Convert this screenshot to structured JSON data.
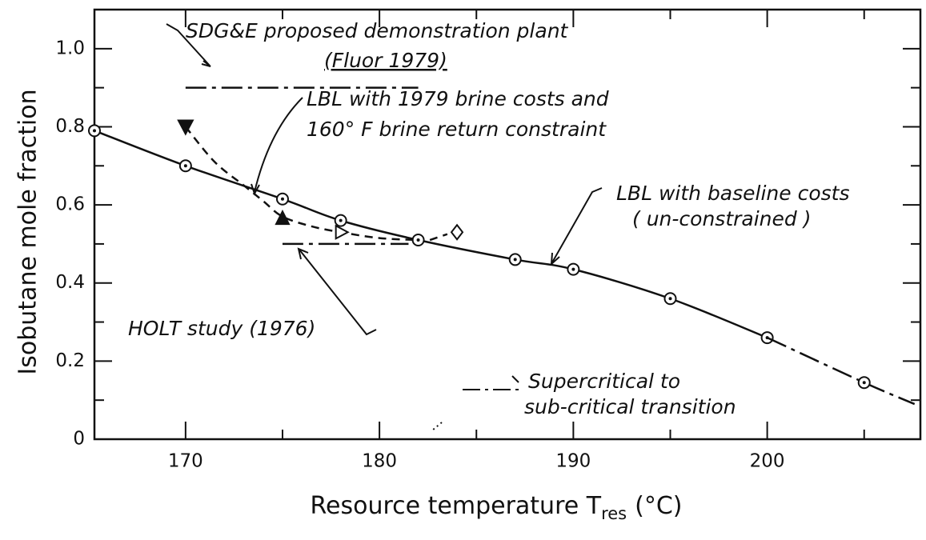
{
  "chart_data": {
    "type": "line",
    "x_label": "Resource temperature T",
    "x_label_subscript": "res",
    "x_label_unit": "(°C)",
    "y_label": "Isobutane mole fraction",
    "xlim": [
      165.3,
      207.9
    ],
    "ylim": [
      0,
      1.1
    ],
    "xticks": [
      170,
      180,
      190,
      200
    ],
    "xticks_minor": [
      175,
      185,
      195,
      205
    ],
    "yticks": [
      0,
      0.2,
      0.4,
      0.6,
      0.8,
      {
        "value": 1,
        "label": "1.0"
      }
    ],
    "yticks_minor": [
      0.1,
      0.3,
      0.5,
      0.7,
      0.9
    ],
    "color": "#111111",
    "series": [
      {
        "line": "solid",
        "marker": "circle-dot",
        "x": [
          165.3,
          170,
          175,
          178,
          182,
          187,
          190,
          195,
          200
        ],
        "values": [
          0.79,
          0.7,
          0.615,
          0.56,
          0.51,
          0.46,
          0.435,
          0.36,
          0.26
        ]
      },
      {
        "line": "dashdot",
        "marker": "none",
        "x": [
          200,
          205,
          207.6
        ],
        "values": [
          0.26,
          0.145,
          0.09
        ]
      },
      {
        "line": "none",
        "marker": "circle-dot",
        "x": [
          205
        ],
        "values": [
          0.145
        ]
      },
      {
        "line": "dashed",
        "marker": "none",
        "x": [
          170,
          171.5,
          173,
          174,
          175,
          176.5,
          178,
          180,
          182
        ],
        "values": [
          0.8,
          0.71,
          0.65,
          0.61,
          0.57,
          0.545,
          0.53,
          0.515,
          0.51
        ]
      },
      {
        "line": "dashed",
        "marker": "none",
        "x": [
          182.6,
          183.5
        ],
        "values": [
          0.51,
          0.525
        ]
      },
      {
        "line": "none",
        "marker": "tri-down",
        "x": [
          170
        ],
        "values": [
          0.8
        ]
      },
      {
        "line": "none",
        "marker": "tri-up",
        "x": [
          175
        ],
        "values": [
          0.565
        ]
      },
      {
        "line": "none",
        "marker": "tri-right-open",
        "x": [
          178
        ],
        "values": [
          0.53
        ]
      },
      {
        "line": "none",
        "marker": "diamond-open",
        "x": [
          184
        ],
        "values": [
          0.53
        ]
      },
      {
        "line": "dashdot",
        "marker": "none",
        "x": [
          170,
          182
        ],
        "values": [
          0.9,
          0.9
        ]
      },
      {
        "line": "dashdot",
        "marker": "none",
        "x": [
          175,
          181.5
        ],
        "values": [
          0.5,
          0.5
        ]
      }
    ],
    "annotations": [
      {
        "text": "SDG&E proposed demonstration plant"
      },
      {
        "text": "(Fluor 1979)"
      },
      {
        "text": "LBL with 1979 brine costs and"
      },
      {
        "text": "160° F brine return constraint"
      },
      {
        "text": "LBL with baseline costs"
      },
      {
        "text": "( un-constrained )"
      },
      {
        "text": "HOLT study (1976)"
      },
      {
        "text": "Supercritical to"
      },
      {
        "text": "sub-critical transition"
      }
    ]
  }
}
